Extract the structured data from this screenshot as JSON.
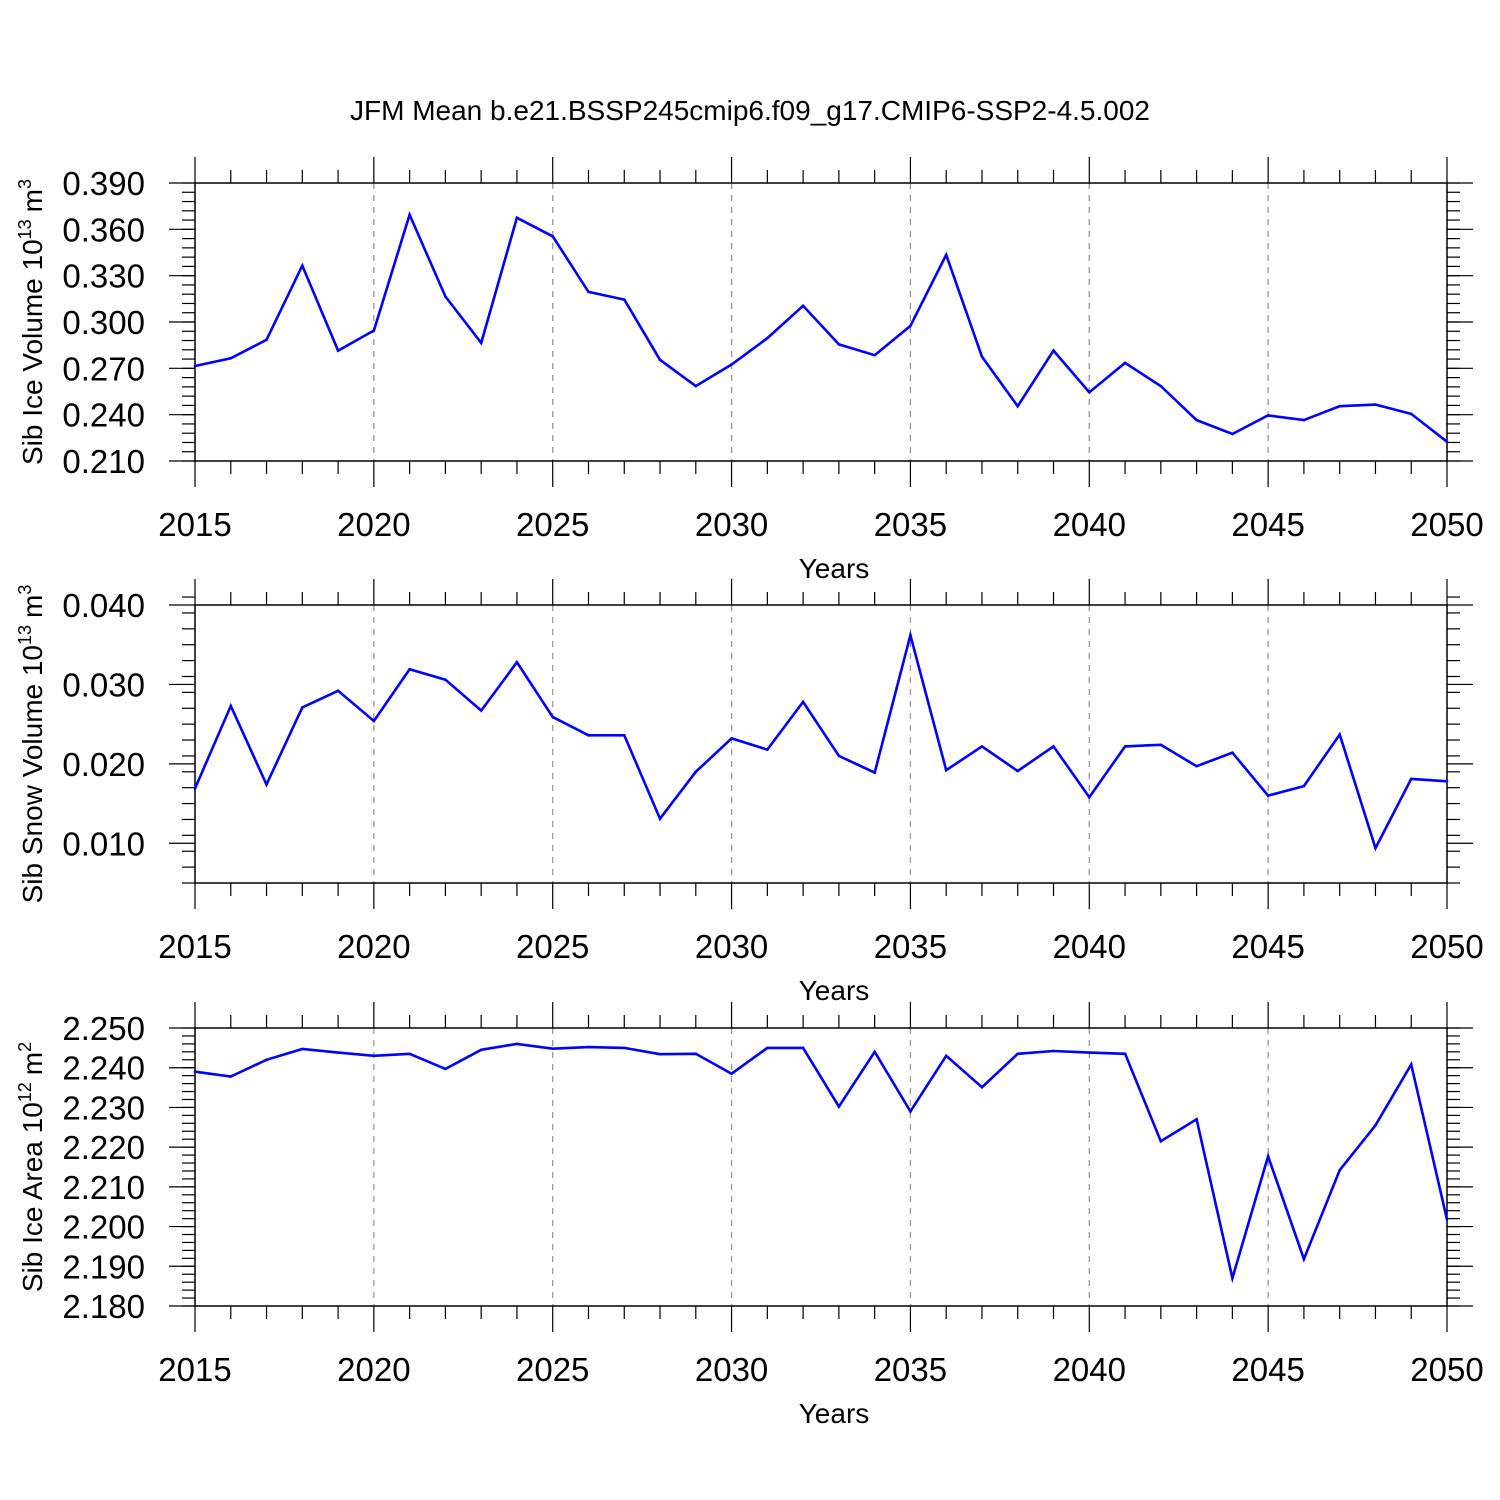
{
  "figure_title": "JFM Mean b.e21.BSSP245cmip6.f09_g17.CMIP6-SSP2-4.5.002",
  "colors": {
    "series": "#0000ff",
    "axis": "#000000",
    "grid": "#999999"
  },
  "chart_data": [
    {
      "type": "line",
      "name": "ice-volume",
      "title": "JFM Mean b.e21.BSSP245cmip6.f09_g17.CMIP6-SSP2-4.5.002",
      "ylabel": "Sib Ice Volume 10",
      "ylabel_sup": "13",
      "ylabel_unit": "m",
      "ylabel_unit_sup": "3",
      "xlabel": "Years",
      "xlim": [
        2015,
        2050
      ],
      "ylim": [
        0.21,
        0.39
      ],
      "yticks": [
        "0.210",
        "0.240",
        "0.270",
        "0.300",
        "0.330",
        "0.360",
        "0.390"
      ],
      "ytick_values": [
        0.21,
        0.24,
        0.27,
        0.3,
        0.33,
        0.36,
        0.39
      ],
      "yminor_step": 0.006,
      "xticks": [
        "2015",
        "2020",
        "2025",
        "2030",
        "2035",
        "2040",
        "2045",
        "2050"
      ],
      "xtick_values": [
        2015,
        2020,
        2025,
        2030,
        2035,
        2040,
        2045,
        2050
      ],
      "grid": "vertical dashed at major x ticks",
      "x": [
        2015,
        2016,
        2017,
        2018,
        2019,
        2020,
        2021,
        2022,
        2023,
        2024,
        2025,
        2026,
        2027,
        2028,
        2029,
        2030,
        2031,
        2032,
        2033,
        2034,
        2035,
        2036,
        2037,
        2038,
        2039,
        2040,
        2041,
        2042,
        2043,
        2044,
        2045,
        2046,
        2047,
        2048,
        2049,
        2050
      ],
      "values": [
        0.2715,
        0.2765,
        0.2885,
        0.3365,
        0.2815,
        0.2945,
        0.3695,
        0.3165,
        0.2865,
        0.3675,
        0.3555,
        0.3195,
        0.3145,
        0.2755,
        0.2585,
        0.2725,
        0.2895,
        0.3105,
        0.2855,
        0.2785,
        0.2975,
        0.3435,
        0.2775,
        0.2455,
        0.2815,
        0.2545,
        0.2735,
        0.2585,
        0.2365,
        0.2275,
        0.2395,
        0.2365,
        0.2455,
        0.2465,
        0.2405,
        0.2225
      ]
    },
    {
      "type": "line",
      "name": "snow-volume",
      "ylabel": "Sib Snow Volume 10",
      "ylabel_sup": "13",
      "ylabel_unit": "m",
      "ylabel_unit_sup": "3",
      "xlabel": "Years",
      "xlim": [
        2015,
        2050
      ],
      "ylim": [
        0.005,
        0.04
      ],
      "yticks": [
        "0.010",
        "0.020",
        "0.030",
        "0.040"
      ],
      "ytick_values": [
        0.01,
        0.02,
        0.03,
        0.04
      ],
      "yminor_step": 0.002,
      "xticks": [
        "2015",
        "2020",
        "2025",
        "2030",
        "2035",
        "2040",
        "2045",
        "2050"
      ],
      "xtick_values": [
        2015,
        2020,
        2025,
        2030,
        2035,
        2040,
        2045,
        2050
      ],
      "grid": "vertical dashed at major x ticks",
      "x": [
        2015,
        2016,
        2017,
        2018,
        2019,
        2020,
        2021,
        2022,
        2023,
        2024,
        2025,
        2026,
        2027,
        2028,
        2029,
        2030,
        2031,
        2032,
        2033,
        2034,
        2035,
        2036,
        2037,
        2038,
        2039,
        2040,
        2041,
        2042,
        2043,
        2044,
        2045,
        2046,
        2047,
        2048,
        2049,
        2050
      ],
      "values": [
        0.0169,
        0.0273,
        0.0174,
        0.0271,
        0.0292,
        0.0254,
        0.0319,
        0.0306,
        0.0267,
        0.0328,
        0.0259,
        0.0236,
        0.0236,
        0.0131,
        0.019,
        0.0232,
        0.0218,
        0.0278,
        0.021,
        0.0189,
        0.0362,
        0.0192,
        0.0222,
        0.0191,
        0.0222,
        0.0158,
        0.0222,
        0.0224,
        0.0197,
        0.0214,
        0.016,
        0.0172,
        0.0237,
        0.0094,
        0.0181,
        0.0178
      ]
    },
    {
      "type": "line",
      "name": "ice-area",
      "ylabel": "Sib Ice Area 10",
      "ylabel_sup": "12",
      "ylabel_unit": "m",
      "ylabel_unit_sup": "2",
      "xlabel": "Years",
      "xlim": [
        2015,
        2050
      ],
      "ylim": [
        2.18,
        2.25
      ],
      "yticks": [
        "2.180",
        "2.190",
        "2.200",
        "2.210",
        "2.220",
        "2.230",
        "2.240",
        "2.250"
      ],
      "ytick_values": [
        2.18,
        2.19,
        2.2,
        2.21,
        2.22,
        2.23,
        2.24,
        2.25
      ],
      "yminor_step": 0.002,
      "xticks": [
        "2015",
        "2020",
        "2025",
        "2030",
        "2035",
        "2040",
        "2045",
        "2050"
      ],
      "xtick_values": [
        2015,
        2020,
        2025,
        2030,
        2035,
        2040,
        2045,
        2050
      ],
      "grid": "vertical dashed at major x ticks",
      "x": [
        2015,
        2016,
        2017,
        2018,
        2019,
        2020,
        2021,
        2022,
        2023,
        2024,
        2025,
        2026,
        2027,
        2028,
        2029,
        2030,
        2031,
        2032,
        2033,
        2034,
        2035,
        2036,
        2037,
        2038,
        2039,
        2040,
        2041,
        2042,
        2043,
        2044,
        2045,
        2046,
        2047,
        2048,
        2049,
        2050
      ],
      "values": [
        2.239,
        2.2378,
        2.242,
        2.2447,
        2.2438,
        2.243,
        2.2435,
        2.2397,
        2.2445,
        2.246,
        2.2448,
        2.2452,
        2.245,
        2.2434,
        2.2435,
        2.2385,
        2.245,
        2.245,
        2.2302,
        2.244,
        2.229,
        2.243,
        2.2351,
        2.2435,
        2.2442,
        2.2438,
        2.2435,
        2.2215,
        2.227,
        2.187,
        2.2177,
        2.1918,
        2.2142,
        2.2255,
        2.2408,
        2.2018
      ]
    }
  ]
}
